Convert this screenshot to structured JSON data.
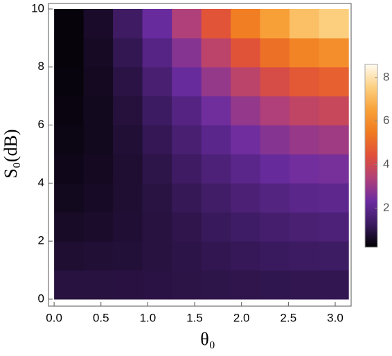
{
  "chart_data": {
    "type": "heatmap",
    "x_label": "θ₀",
    "y_label": "S₀(dB)",
    "xlim": [
      -0.06,
      3.17
    ],
    "ylim": [
      -0.24,
      10.19
    ],
    "xticks": [
      {
        "value": 0,
        "label": "0.0"
      },
      {
        "value": 0.5,
        "label": "0.5"
      },
      {
        "value": 1,
        "label": "1.0"
      },
      {
        "value": 1.5,
        "label": "1.5"
      },
      {
        "value": 2,
        "label": "2.0"
      },
      {
        "value": 2.5,
        "label": "2.5"
      },
      {
        "value": 3,
        "label": "3.0"
      }
    ],
    "yticks": [
      0,
      2,
      4,
      6,
      8,
      10
    ],
    "x_bins": [
      0,
      0.314,
      0.628,
      0.942,
      1.257,
      1.571,
      1.885,
      2.199,
      2.513,
      2.827,
      3.142
    ],
    "y_bins": [
      0,
      1,
      2,
      3,
      4,
      5,
      6,
      7,
      8,
      9,
      10
    ],
    "z": [
      [
        0.91,
        0.92,
        0.94,
        0.96,
        0.99,
        1.02,
        1.05,
        1.07,
        1.09,
        1.1
      ],
      [
        0.76,
        0.79,
        0.84,
        0.92,
        1.0,
        1.1,
        1.18,
        1.26,
        1.31,
        1.34
      ],
      [
        0.64,
        0.69,
        0.78,
        0.91,
        1.06,
        1.22,
        1.37,
        1.5,
        1.59,
        1.64
      ],
      [
        0.55,
        0.62,
        0.76,
        0.95,
        1.17,
        1.4,
        1.62,
        1.81,
        1.95,
        2.02
      ],
      [
        0.48,
        0.58,
        0.76,
        1.02,
        1.33,
        1.65,
        1.95,
        2.21,
        2.4,
        2.5
      ],
      [
        0.42,
        0.55,
        0.8,
        1.14,
        1.55,
        1.97,
        2.37,
        2.72,
        2.97,
        3.1
      ],
      [
        0.38,
        0.55,
        0.87,
        1.32,
        1.84,
        2.39,
        2.92,
        3.36,
        3.69,
        3.86
      ],
      [
        0.35,
        0.56,
        0.98,
        1.55,
        2.23,
        2.93,
        3.6,
        4.18,
        4.59,
        4.81
      ],
      [
        0.32,
        0.6,
        1.13,
        1.86,
        2.72,
        3.62,
        4.47,
        5.2,
        5.73,
        6.01
      ],
      [
        0.31,
        0.66,
        1.33,
        2.26,
        3.35,
        4.49,
        5.57,
        6.5,
        7.17,
        7.52
      ]
    ],
    "zlim": [
      0.2,
      8.6
    ],
    "zticks": [
      2,
      4,
      6,
      8
    ],
    "colormap": [
      "#000000",
      "#3a1a5e",
      "#6a2ca0",
      "#b0407a",
      "#e0503a",
      "#f07a20",
      "#f8a038",
      "#fcd080",
      "#fffbf0"
    ]
  }
}
